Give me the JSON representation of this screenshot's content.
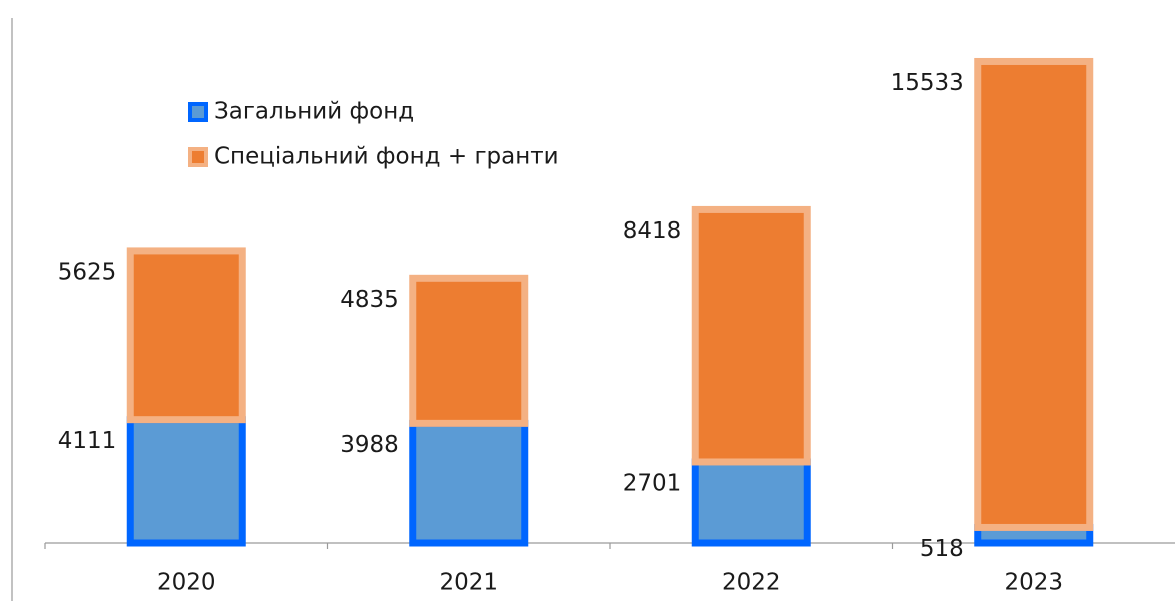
{
  "chart_data": {
    "type": "stacked-bar",
    "categories": [
      "2020",
      "2021",
      "2022",
      "2023"
    ],
    "series": [
      {
        "name": "Загальний фонд",
        "color": "#5b9bd5",
        "edge": "#0066ff",
        "values": [
          4111,
          3988,
          2701,
          518
        ]
      },
      {
        "name": "Спеціальний фонд + гранти",
        "color": "#ed7d31",
        "edge": "#f4b183",
        "values": [
          5625,
          4835,
          8418,
          15533
        ]
      }
    ],
    "ylim": [
      0,
      17000
    ]
  }
}
